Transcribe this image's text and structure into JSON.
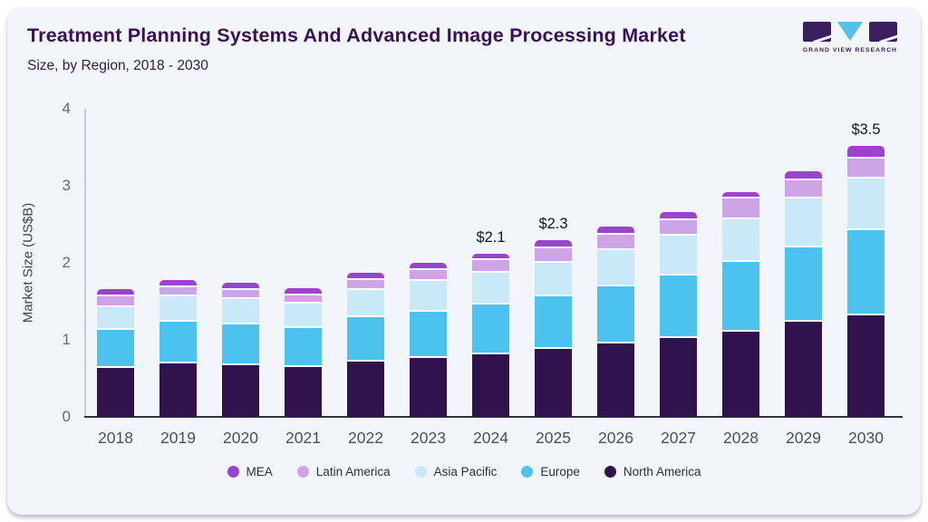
{
  "header": {
    "title": "Treatment Planning Systems And Advanced Image Processing Market",
    "subtitle": "Size, by Region, 2018 - 2030"
  },
  "logo": {
    "brand": "GRAND VIEW RESEARCH",
    "triangle_color": "#56c1e8",
    "block_color": "#3b2060"
  },
  "chart_data": {
    "type": "bar",
    "stacked": true,
    "categories": [
      "2018",
      "2019",
      "2020",
      "2021",
      "2022",
      "2023",
      "2024",
      "2025",
      "2026",
      "2027",
      "2028",
      "2029",
      "2030"
    ],
    "series": [
      {
        "name": "North America",
        "color": "#30124c",
        "values": [
          0.64,
          0.69,
          0.67,
          0.65,
          0.72,
          0.76,
          0.81,
          0.88,
          0.95,
          1.02,
          1.11,
          1.23,
          1.32
        ]
      },
      {
        "name": "Europe",
        "color": "#4cc3ef",
        "values": [
          0.49,
          0.54,
          0.53,
          0.5,
          0.57,
          0.6,
          0.65,
          0.69,
          0.75,
          0.82,
          0.9,
          0.97,
          1.1
        ]
      },
      {
        "name": "Asia Pacific",
        "color": "#c9e9f8",
        "values": [
          0.29,
          0.33,
          0.33,
          0.32,
          0.36,
          0.41,
          0.41,
          0.43,
          0.46,
          0.51,
          0.56,
          0.63,
          0.68
        ]
      },
      {
        "name": "Latin America",
        "color": "#cda5e6",
        "values": [
          0.14,
          0.12,
          0.12,
          0.11,
          0.13,
          0.14,
          0.16,
          0.19,
          0.21,
          0.2,
          0.26,
          0.24,
          0.25
        ]
      },
      {
        "name": "MEA",
        "color": "#9b43d0",
        "values": [
          0.07,
          0.07,
          0.07,
          0.07,
          0.07,
          0.07,
          0.07,
          0.08,
          0.08,
          0.09,
          0.07,
          0.1,
          0.14
        ]
      }
    ],
    "annotations": [
      {
        "category": "2024",
        "label": "$2.1"
      },
      {
        "category": "2025",
        "label": "$2.3"
      },
      {
        "category": "2030",
        "label": "$3.5"
      }
    ],
    "ylabel": "Market Size (US$B)",
    "xlabel": "",
    "yticks": [
      0,
      1,
      2,
      3,
      4
    ],
    "ylim": [
      0,
      4
    ],
    "grid": false,
    "legend": {
      "position": "bottom",
      "order": [
        "MEA",
        "Latin America",
        "Asia Pacific",
        "Europe",
        "North America"
      ]
    }
  }
}
